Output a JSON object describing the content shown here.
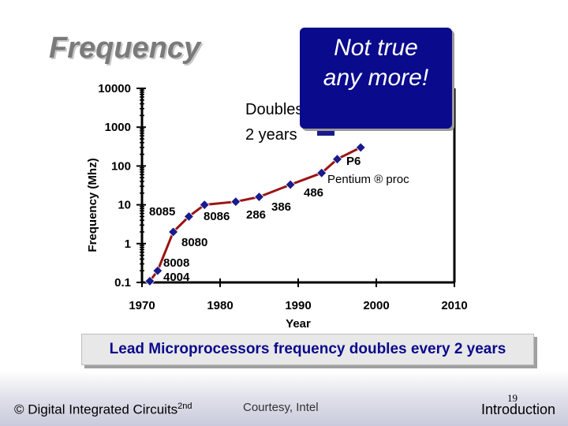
{
  "title": "Frequency",
  "callout": {
    "line1": "Not true",
    "line2": "any more!"
  },
  "annotation": {
    "line1": "Doubles every",
    "line2": "2 years"
  },
  "summary": "Lead Microprocessors frequency doubles every 2 years",
  "footer": {
    "copyright": "© Digital Integrated Circuits",
    "edition": "2nd",
    "credit": "Courtesy, Intel",
    "page": "19",
    "section": "Introduction"
  },
  "colors": {
    "series": "#9b1414",
    "marker": "#1a1a8c",
    "axis": "#000000",
    "callout": "#0a0a8c"
  },
  "chart_data": {
    "type": "line",
    "ylabel": "Frequency (Mhz)",
    "xlabel": "Year",
    "xlim": [
      1970,
      2010
    ],
    "ylim": [
      0.1,
      10000
    ],
    "yscale": "log",
    "x_ticks": [
      "1970",
      "1980",
      "1990",
      "2000",
      "2010"
    ],
    "y_ticks": [
      "0.1",
      "1",
      "10",
      "100",
      "1000",
      "10000"
    ],
    "series": [
      {
        "points": [
          {
            "x": 1971,
            "y": 0.108
          },
          {
            "x": 1972,
            "y": 0.2
          },
          {
            "x": 1974,
            "y": 2
          },
          {
            "x": 1976,
            "y": 5
          },
          {
            "x": 1978,
            "y": 10
          },
          {
            "x": 1982,
            "y": 12
          },
          {
            "x": 1985,
            "y": 16
          },
          {
            "x": 1989,
            "y": 33
          },
          {
            "x": 1993,
            "y": 66
          },
          {
            "x": 1995,
            "y": 150
          },
          {
            "x": 1998,
            "y": 300
          }
        ]
      }
    ],
    "annotations": [
      "4004",
      "8008",
      "8080",
      "8085",
      "8086",
      "286",
      "386",
      "486",
      "P6",
      "Pentium ® proc"
    ]
  }
}
